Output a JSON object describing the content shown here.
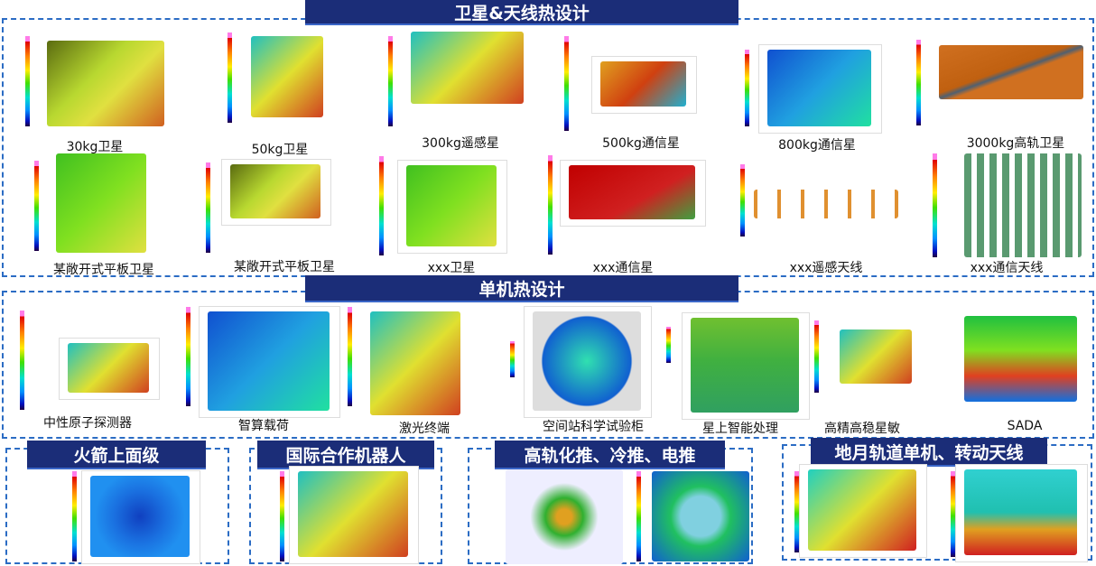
{
  "sections": {
    "satellite": {
      "title": "卫星&天线热设计",
      "items": [
        {
          "label": "30kg卫星"
        },
        {
          "label": "50kg卫星"
        },
        {
          "label": "300kg遥感星"
        },
        {
          "label": "500kg通信星"
        },
        {
          "label": "800kg通信星"
        },
        {
          "label": "3000kg高轨卫星"
        },
        {
          "label": "某敞开式平板卫星"
        },
        {
          "label": "某敞开式平板卫星"
        },
        {
          "label": "xxx卫星"
        },
        {
          "label": "xxx通信星"
        },
        {
          "label": "xxx遥感天线"
        },
        {
          "label": "xxx通信天线"
        }
      ]
    },
    "unit": {
      "title": "单机热设计",
      "items": [
        {
          "label": "中性原子探测器"
        },
        {
          "label": "智算载荷"
        },
        {
          "label": "激光终端"
        },
        {
          "label": "空间站科学试验柜"
        },
        {
          "label": "星上智能处理"
        },
        {
          "label": "高精高稳星敏"
        },
        {
          "label": "SADA"
        }
      ]
    },
    "rocket": {
      "title": "火箭上面级"
    },
    "robot": {
      "title": "国际合作机器人"
    },
    "propulsion": {
      "title": "高轨化推、冷推、电推"
    },
    "lunar": {
      "title": "地月轨道单机、转动天线"
    }
  },
  "colors": {
    "header_bg": "#1b2d78",
    "dashed_border": "#2b6cc4"
  }
}
